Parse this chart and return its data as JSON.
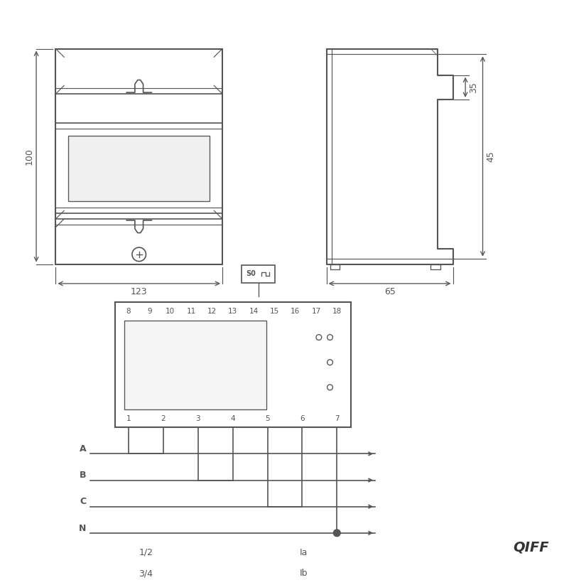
{
  "bg_color": "#ffffff",
  "line_color": "#555555",
  "line_width": 1.2,
  "fig_size": [
    8,
    8
  ],
  "dpi": 100,
  "watermark": "QIFF",
  "dim_labels": {
    "width_123": "123",
    "height_100": "100",
    "depth_65": "65",
    "h_35": "35",
    "h_45": "45"
  },
  "terminal_top_labels": [
    "8",
    "9",
    "10",
    "11",
    "12",
    "13",
    "14",
    "15",
    "16",
    "17",
    "18"
  ],
  "terminal_bot_labels": [
    "1",
    "2",
    "3",
    "4",
    "5",
    "6",
    "7"
  ],
  "phase_labels": [
    "A",
    "B",
    "C",
    "N"
  ],
  "bottom_labels": [
    "1/2",
    "Ia",
    "3/4",
    "Ib"
  ]
}
